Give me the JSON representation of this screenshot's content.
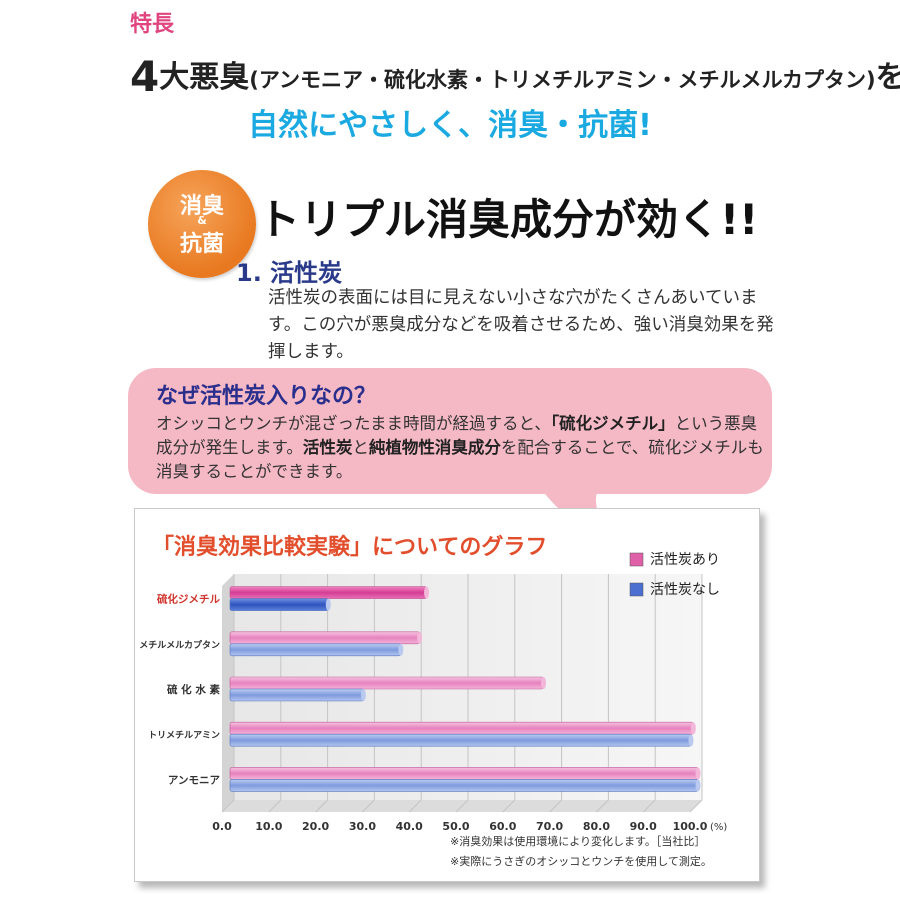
{
  "header": {
    "feature_label": "特長",
    "headline_big": "4",
    "headline_mid": "大悪臭",
    "headline_paren": "(アンモニア・硫化水素・トリメチルアミン・メチルメルカプタン)",
    "headline_wo": "を",
    "subheadline": "自然にやさしく、消臭・抗菌!"
  },
  "badge": {
    "line1": "消臭",
    "amp": "&",
    "line2": "抗菌"
  },
  "triple_title": "トリプル消臭成分が効く!!",
  "section": {
    "title": "1. 活性炭",
    "body": "活性炭の表面には目に見えない小さな穴がたくさんあいています。この穴が悪臭成分などを吸着させるため、強い消臭効果を発揮します。"
  },
  "bubble": {
    "title": "なぜ活性炭入りなの？",
    "body_part1": "オシッコとウンチが混ざったまま時間が経過すると、",
    "body_bold1": "「硫化ジメチル」",
    "body_part2": "という悪臭成分が発生します。",
    "body_bold2": "活性炭",
    "body_part3": "と",
    "body_bold3": "純植物性消臭成分",
    "body_part4": "を配合することで、硫化ジメチルも消臭することができます。"
  },
  "chart_data": {
    "type": "bar",
    "orientation": "horizontal",
    "title": "「消臭効果比較実験」についてのグラフ",
    "categories": [
      "硫化ジメチル",
      "メチルメルカプタン",
      "硫 化 水 素",
      "トリメチルアミン",
      "アンモニア"
    ],
    "series": [
      {
        "name": "活性炭あり",
        "values": [
          42,
          40.5,
          67,
          99,
          100
        ],
        "color": "#e060a8"
      },
      {
        "name": "活性炭なし",
        "values": [
          21,
          36.5,
          28.5,
          98.5,
          100
        ],
        "color": "#4a6fd0"
      }
    ],
    "highlight_category_color": "#d0342c",
    "x_ticks": [
      "0.0",
      "10.0",
      "20.0",
      "30.0",
      "40.0",
      "50.0",
      "60.0",
      "70.0",
      "80.0",
      "90.0",
      "100.0"
    ],
    "x_unit": "(%)",
    "xlim": [
      0,
      100
    ],
    "grid": true,
    "legend_position": "top-right"
  },
  "notes": {
    "note1": "※消臭効果は使用環境により変化します。［当社比］",
    "note2": "※実際にうさぎのオシッコとウンチを使用して測定。"
  }
}
